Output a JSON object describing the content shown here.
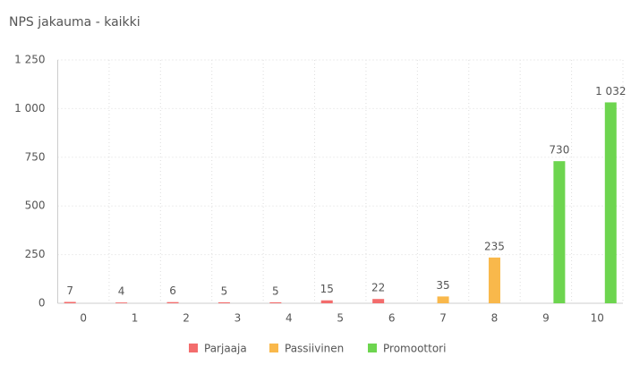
{
  "chart_data": {
    "type": "bar",
    "title": "NPS jakauma - kaikki",
    "categories": [
      "0",
      "1",
      "2",
      "3",
      "4",
      "5",
      "6",
      "7",
      "8",
      "9",
      "10"
    ],
    "series": [
      {
        "name": "Parjaaja",
        "color": "#f36c6c",
        "values": [
          7,
          4,
          6,
          5,
          5,
          15,
          22,
          null,
          null,
          null,
          null
        ]
      },
      {
        "name": "Passiivinen",
        "color": "#f9b84b",
        "values": [
          null,
          null,
          null,
          null,
          null,
          null,
          null,
          35,
          235,
          null,
          null
        ]
      },
      {
        "name": "Promoottori",
        "color": "#6dd54f",
        "values": [
          null,
          null,
          null,
          null,
          null,
          null,
          null,
          null,
          null,
          730,
          1032
        ],
        "value_labels": [
          null,
          null,
          null,
          null,
          null,
          null,
          null,
          null,
          null,
          "730",
          "1 032"
        ]
      }
    ],
    "ylim": [
      0,
      1250
    ],
    "yticks": [
      0,
      250,
      500,
      750,
      {
        "value": 1000,
        "label": "1 000"
      },
      {
        "value": 1250,
        "label": "1 250"
      }
    ],
    "grid": true,
    "legend": "bottom"
  }
}
